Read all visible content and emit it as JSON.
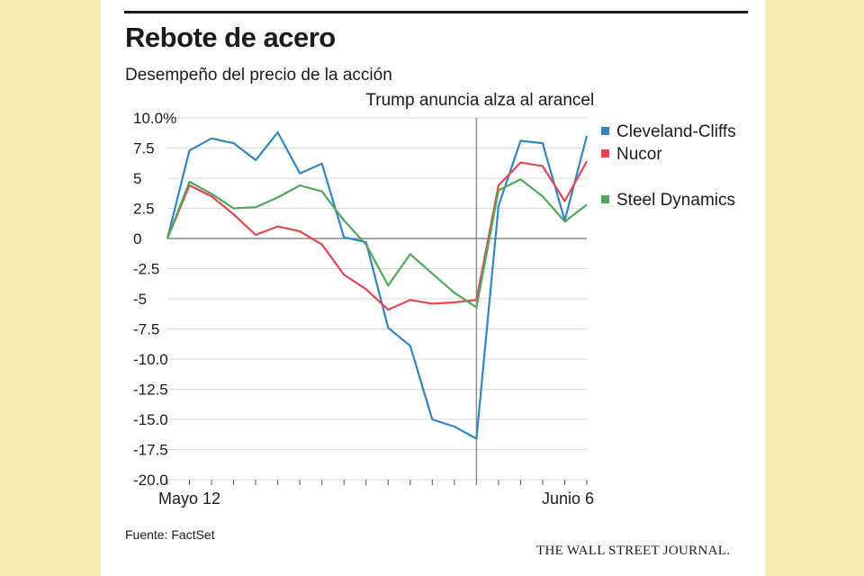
{
  "header": {
    "title": "Rebote de acero",
    "subtitle": "Desempeño del precio de la acción"
  },
  "footer": {
    "source": "Fuente: FactSet",
    "publisher": "THE WALL STREET JOURNAL."
  },
  "chart_data": {
    "type": "line",
    "title": "Rebote de acero",
    "subtitle": "Desempeño del precio de la acción",
    "x_ticks": [
      "Mayo 12",
      "Junio 6"
    ],
    "ylim": [
      -20,
      10
    ],
    "y_ticks": [
      "10.0%",
      "7.5",
      "5",
      "2.5",
      "0",
      "-2.5",
      "-5",
      "-7.5",
      "-10.0",
      "-12.5",
      "-15.0",
      "-17.5",
      "-20.0"
    ],
    "y_tick_values": [
      10,
      7.5,
      5,
      2.5,
      0,
      -2.5,
      -5,
      -7.5,
      -10,
      -12.5,
      -15,
      -17.5,
      -20
    ],
    "grid": true,
    "legend_position": "right",
    "annotation": {
      "text": "Trump anuncia alza al arancel",
      "x_index": 14
    },
    "n_points": 20,
    "series": [
      {
        "name": "Cleveland-Cliffs",
        "color": "#2f86c3",
        "values": [
          0,
          7.3,
          8.3,
          7.9,
          6.5,
          8.8,
          5.4,
          6.2,
          0.1,
          -0.3,
          -7.4,
          -8.9,
          -15,
          -15.6,
          -16.6,
          2.7,
          8.1,
          7.9,
          1.5,
          8.5
        ]
      },
      {
        "name": "Nucor",
        "color": "#e14854",
        "values": [
          0,
          4.4,
          3.5,
          2,
          0.3,
          1,
          0.6,
          -0.5,
          -3,
          -4.2,
          -5.9,
          -5.1,
          -5.4,
          -5.3,
          -5.1,
          4.4,
          6.3,
          6,
          3.1,
          6.4
        ]
      },
      {
        "name": "Steel Dynamics",
        "color": "#52a85a",
        "values": [
          0,
          4.7,
          3.7,
          2.5,
          2.6,
          3.4,
          4.4,
          3.9,
          1.5,
          -0.5,
          -3.9,
          -1.3,
          -2.9,
          -4.5,
          -5.7,
          4,
          4.9,
          3.5,
          1.4,
          2.8
        ]
      }
    ]
  }
}
